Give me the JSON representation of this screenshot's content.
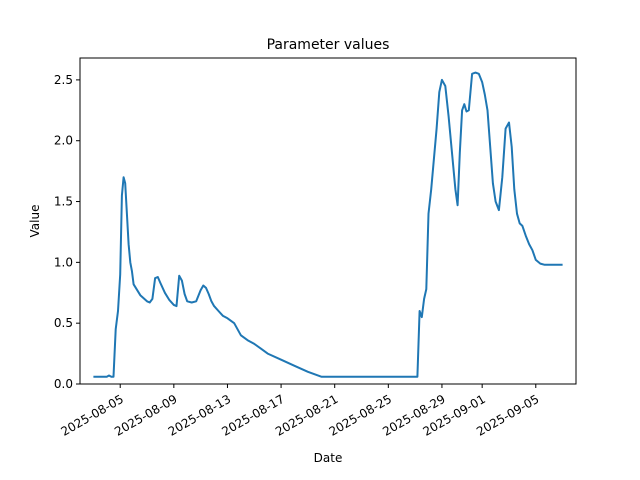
{
  "chart_data": {
    "type": "line",
    "title": "Parameter values",
    "xlabel": "Date",
    "ylabel": "Value",
    "xlim": [
      "2025-08-02",
      "2025-09-08"
    ],
    "ylim": [
      0,
      2.68
    ],
    "grid": false,
    "x_ticks": [
      "2025-08-05",
      "2025-08-09",
      "2025-08-13",
      "2025-08-17",
      "2025-08-21",
      "2025-08-25",
      "2025-08-29",
      "2025-09-01",
      "2025-09-05"
    ],
    "y_ticks": [
      0.0,
      0.5,
      1.0,
      1.5,
      2.0,
      2.5
    ],
    "y_tick_labels": [
      "0.0",
      "0.5",
      "1.0",
      "1.5",
      "2.0",
      "2.5"
    ],
    "series": [
      {
        "color": "#1f77b4",
        "x": [
          "2025-08-03",
          "2025-08-03",
          "2025-08-04",
          "2025-08-04",
          "2025-08-04",
          "2025-08-04",
          "2025-08-04",
          "2025-08-04",
          "2025-08-05",
          "2025-08-05",
          "2025-08-05",
          "2025-08-05",
          "2025-08-05",
          "2025-08-05",
          "2025-08-05",
          "2025-08-05",
          "2025-08-06",
          "2025-08-06",
          "2025-08-07",
          "2025-08-07",
          "2025-08-07",
          "2025-08-07",
          "2025-08-07",
          "2025-08-08",
          "2025-08-08",
          "2025-08-08",
          "2025-08-09",
          "2025-08-09",
          "2025-08-09",
          "2025-08-09",
          "2025-08-09",
          "2025-08-10",
          "2025-08-10",
          "2025-08-10",
          "2025-08-11",
          "2025-08-11",
          "2025-08-11",
          "2025-08-11",
          "2025-08-11",
          "2025-08-12",
          "2025-08-12",
          "2025-08-12",
          "2025-08-13",
          "2025-08-13",
          "2025-08-14",
          "2025-08-14",
          "2025-08-15",
          "2025-08-15",
          "2025-08-16",
          "2025-08-17",
          "2025-08-18",
          "2025-08-19",
          "2025-08-20",
          "2025-08-21",
          "2025-08-22",
          "2025-08-23",
          "2025-08-24",
          "2025-08-24",
          "2025-08-24",
          "2025-08-25",
          "2025-08-26",
          "2025-08-27",
          "2025-08-27",
          "2025-08-27",
          "2025-08-27",
          "2025-08-27",
          "2025-08-27",
          "2025-08-28",
          "2025-08-28",
          "2025-08-28",
          "2025-08-28",
          "2025-08-28",
          "2025-08-29",
          "2025-08-29",
          "2025-08-29",
          "2025-08-29",
          "2025-08-30",
          "2025-08-30",
          "2025-08-30",
          "2025-08-30",
          "2025-08-30",
          "2025-08-30",
          "2025-08-31",
          "2025-08-31",
          "2025-08-31",
          "2025-08-31",
          "2025-09-01",
          "2025-09-01",
          "2025-09-01",
          "2025-09-01",
          "2025-09-01",
          "2025-09-02",
          "2025-09-02",
          "2025-09-02",
          "2025-09-02",
          "2025-09-03",
          "2025-09-03",
          "2025-09-03",
          "2025-09-03",
          "2025-09-03",
          "2025-09-04",
          "2025-09-04",
          "2025-09-04",
          "2025-09-04",
          "2025-09-05",
          "2025-09-05",
          "2025-09-05",
          "2025-09-06",
          "2025-09-06",
          "2025-09-06",
          "2025-09-07"
        ],
        "y": [
          0.06,
          0.06,
          0.06,
          0.07,
          0.06,
          0.06,
          0.45,
          0.6,
          0.9,
          1.55,
          1.7,
          1.65,
          1.4,
          1.15,
          1.0,
          0.93,
          0.82,
          0.73,
          0.68,
          0.67,
          0.7,
          0.87,
          0.88,
          0.83,
          0.75,
          0.69,
          0.65,
          0.64,
          0.89,
          0.85,
          0.74,
          0.68,
          0.67,
          0.68,
          0.77,
          0.81,
          0.79,
          0.74,
          0.68,
          0.64,
          0.6,
          0.56,
          0.54,
          0.5,
          0.4,
          0.36,
          0.33,
          0.29,
          0.25,
          0.2,
          0.15,
          0.1,
          0.06,
          0.06,
          0.06,
          0.06,
          0.06,
          0.06,
          0.06,
          0.06,
          0.06,
          0.06,
          0.06,
          0.6,
          0.55,
          0.7,
          0.78,
          1.4,
          1.6,
          1.85,
          2.1,
          2.4,
          2.5,
          2.45,
          2.2,
          1.9,
          1.6,
          1.47,
          1.9,
          2.25,
          2.3,
          2.24,
          2.25,
          2.55,
          2.56,
          2.55,
          2.48,
          2.38,
          2.25,
          1.95,
          1.65,
          1.5,
          1.43,
          1.7,
          2.1,
          2.15,
          1.95,
          1.6,
          1.4,
          1.32,
          1.3,
          1.22,
          1.15,
          1.1,
          1.02,
          0.99,
          0.98,
          0.98,
          0.98,
          0.98,
          0.98
        ]
      }
    ]
  }
}
